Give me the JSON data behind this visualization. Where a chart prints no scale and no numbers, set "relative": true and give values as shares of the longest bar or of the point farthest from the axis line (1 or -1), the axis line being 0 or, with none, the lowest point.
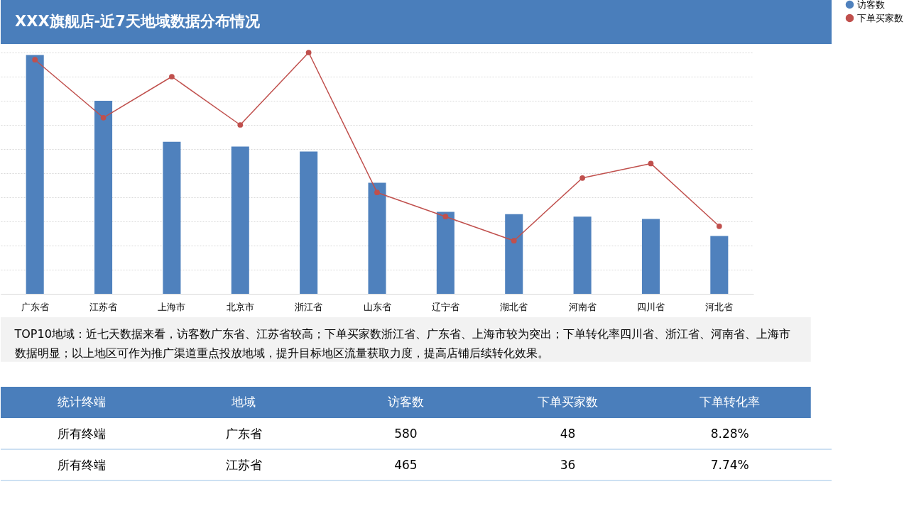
{
  "chart_data": [
    {
      "type": "bar",
      "title": "XXX旗舰店-近7天地域数据分布情况",
      "relative": true,
      "categories": [
        "广东省",
        "江苏省",
        "上海市",
        "北京市",
        "浙江省",
        "山东省",
        "辽宁省",
        "湖北省",
        "河南省",
        "四川省",
        "河北省"
      ],
      "series": [
        {
          "name": "访客数",
          "type": "bar",
          "color": "#4f81bd",
          "values": [
            0.99,
            0.8,
            0.63,
            0.61,
            0.59,
            0.46,
            0.34,
            0.33,
            0.32,
            0.31,
            0.24
          ]
        },
        {
          "name": "下单买家数",
          "type": "line",
          "color": "#c0504d",
          "marker": "circle",
          "line_style": "solid",
          "values": [
            0.97,
            0.73,
            0.9,
            0.7,
            1.0,
            0.42,
            0.32,
            0.22,
            0.48,
            0.54,
            0.28
          ]
        }
      ],
      "grid": "y",
      "legend": "right"
    },
    {
      "type": "other",
      "annotations": [
        "TOP10地域：近七天数据来看，访客数广东省、江苏省较高；下单买家数浙江省、广东省、上海市较为突出；下单转化率四川省、浙江省、河南省、上海市数据明显；以上地区可作为推广渠道重点投放地域，提升目标地区流量获取力度，提高店铺后续转化效果。",
        "统计终端",
        "地域",
        "访客数",
        "下单买家数",
        "下单转化率",
        "所有终端",
        "广东省",
        "580",
        "48",
        "8.28%",
        "所有终端",
        "江苏省",
        "465",
        "36",
        "7.74%"
      ]
    }
  ]
}
